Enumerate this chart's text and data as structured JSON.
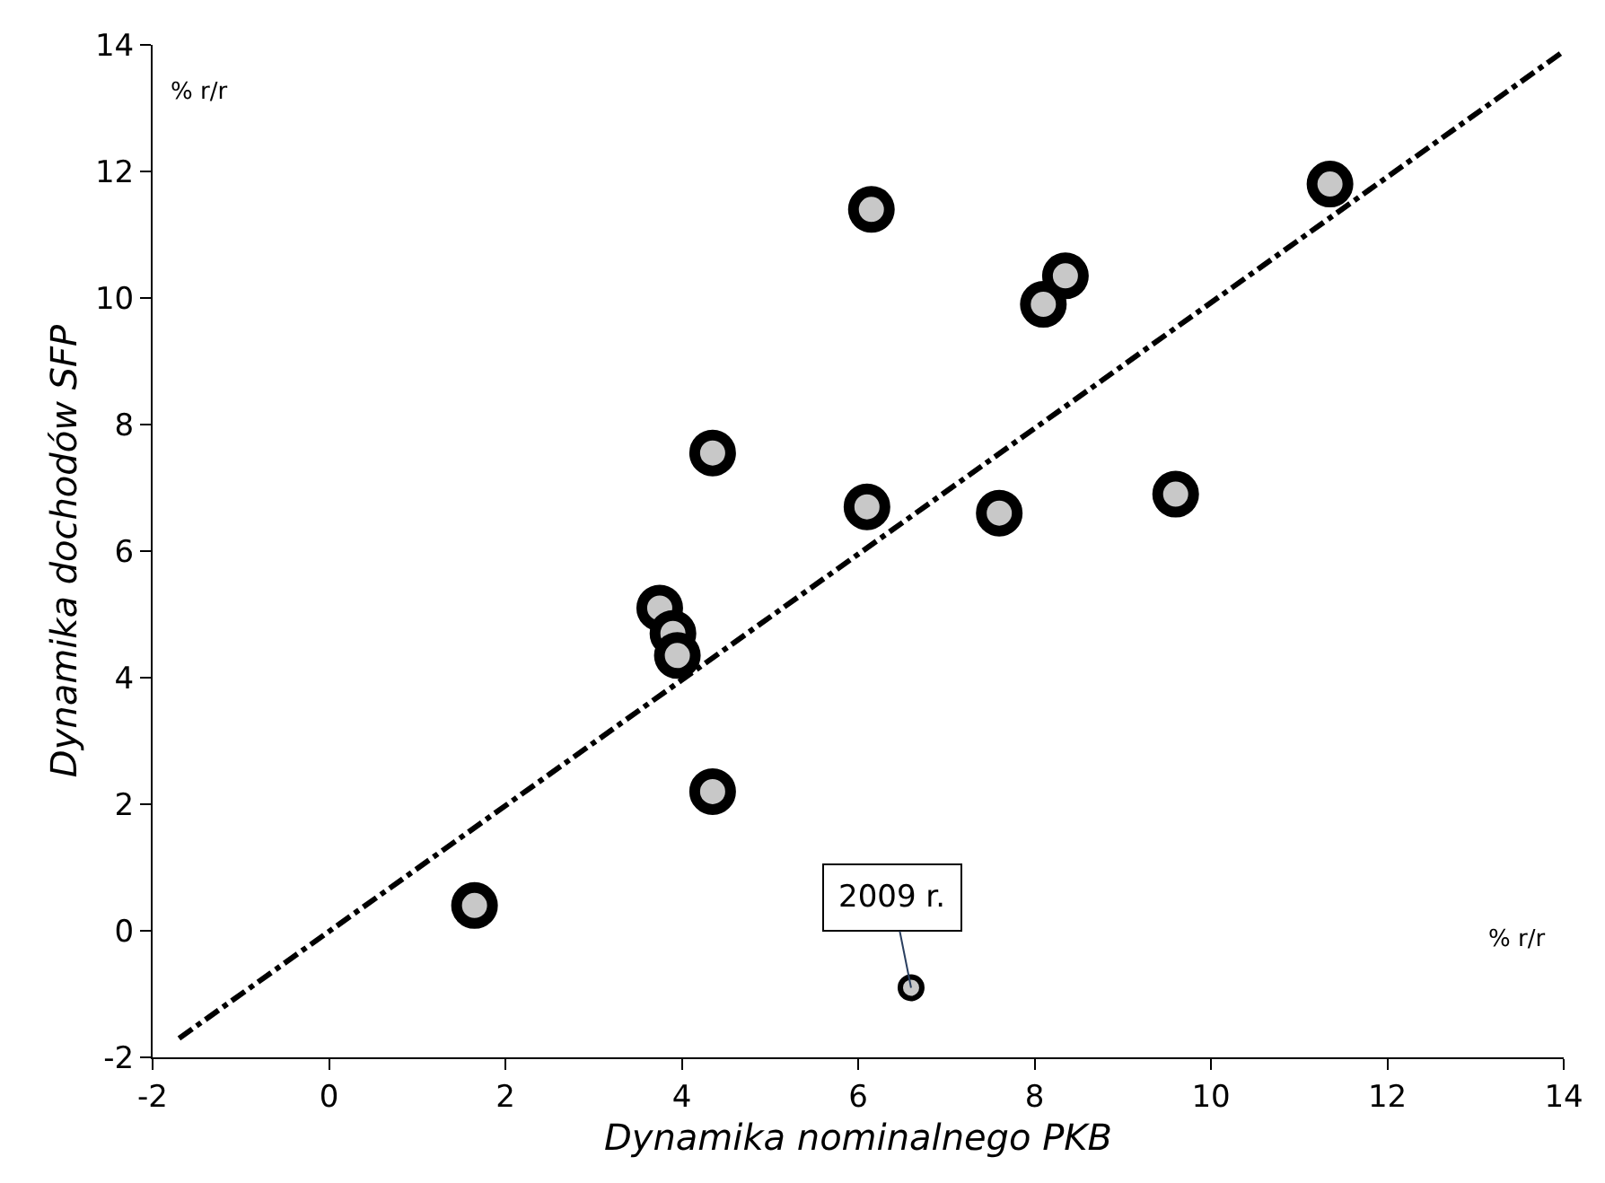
{
  "chart_data": {
    "type": "scatter",
    "xlabel": "Dynamika nominalnego PKB",
    "ylabel": "Dynamika dochodów SFP",
    "xlim": [
      -2,
      14
    ],
    "xticks": [
      -2,
      0,
      2,
      4,
      6,
      8,
      10,
      12,
      14
    ],
    "ylim": [
      -2,
      14
    ],
    "yticks": [
      -2,
      0,
      2,
      4,
      6,
      8,
      10,
      12,
      14
    ],
    "marker": "circle",
    "series": [
      {
        "color": "#000000",
        "x": [
          1.65,
          3.75,
          3.9,
          3.95,
          4.35,
          4.35,
          6.15,
          6.1,
          7.6,
          8.1,
          8.35,
          9.6,
          11.35
        ],
        "values": [
          0.4,
          5.1,
          4.7,
          4.35,
          7.55,
          2.2,
          11.4,
          6.7,
          6.6,
          9.9,
          10.35,
          6.9,
          11.8
        ]
      },
      {
        "color": "#000000",
        "x": [
          6.6
        ],
        "values": [
          -0.9
        ]
      },
      {
        "type": "line",
        "color": "#000000",
        "line_style": "dashdot",
        "marker": "none",
        "x": [
          -1.7,
          14
        ],
        "values": [
          -1.7,
          13.9
        ]
      }
    ],
    "annotations": [
      {
        "text": "2009 r.",
        "x": 6.6,
        "y": -0.9
      },
      "% r/r",
      "% r/r"
    ]
  }
}
